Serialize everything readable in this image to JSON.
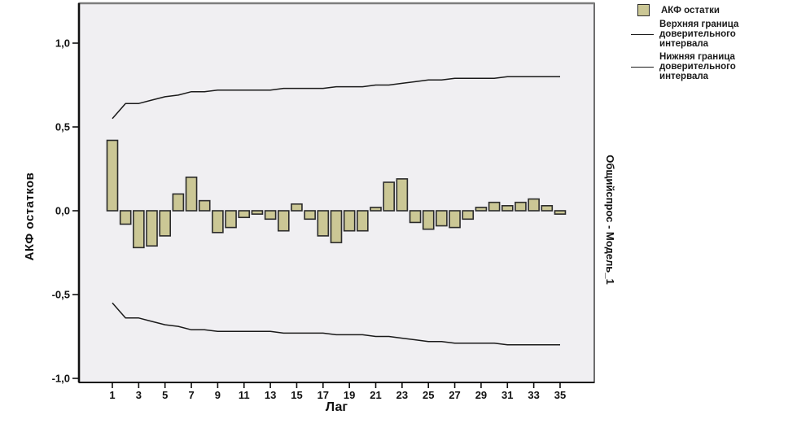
{
  "figure": {
    "background": "#FFFFFF",
    "plot_background": "#F0EFF2",
    "frame_color": "#4A4A4A",
    "axis_color": "#111111",
    "tick_text_color": "#111111"
  },
  "titles": {
    "y_axis": "АКФ остатков",
    "x_axis": "Лаг",
    "right": "Общийспрос - Модель_1"
  },
  "legend": {
    "items": [
      {
        "swatch": "bar-swatch",
        "label": "АКФ остатки"
      },
      {
        "swatch": "line-swatch",
        "label": "Верхняя граница доверительного интервала"
      },
      {
        "swatch": "line-swatch",
        "label": "Нижняя граница доверительного интервала"
      }
    ]
  },
  "chart_data": {
    "type": "bar",
    "title": "",
    "xlabel": "Лаг",
    "ylabel": "АКФ остатков",
    "right_label": "Общийспрос - Модель_1",
    "grid": false,
    "legend_position": "top-right",
    "ylim": [
      -1.03,
      1.24
    ],
    "xlim": [
      -1.5,
      37.6
    ],
    "x": [
      1,
      2,
      3,
      4,
      5,
      6,
      7,
      8,
      9,
      10,
      11,
      12,
      13,
      14,
      15,
      16,
      17,
      18,
      19,
      20,
      21,
      22,
      23,
      24,
      25,
      26,
      27,
      28,
      29,
      30,
      31,
      32,
      33,
      34,
      35
    ],
    "series": [
      {
        "name": "АКФ остатки",
        "type": "bar",
        "color": "#CBC795",
        "border_color": "#2B2B2B",
        "values": [
          0.42,
          -0.08,
          -0.22,
          -0.21,
          -0.15,
          0.1,
          0.2,
          0.06,
          -0.13,
          -0.1,
          -0.04,
          -0.02,
          -0.05,
          -0.12,
          0.04,
          -0.05,
          -0.15,
          -0.19,
          -0.12,
          -0.12,
          0.02,
          0.17,
          0.19,
          -0.07,
          -0.11,
          -0.09,
          -0.1,
          -0.05,
          0.02,
          0.05,
          0.03,
          0.05,
          0.07,
          0.03,
          -0.02
        ]
      },
      {
        "name": "Верхняя граница доверительного интервала",
        "type": "line",
        "color": "#1A1A1A",
        "values": [
          0.55,
          0.64,
          0.64,
          0.66,
          0.68,
          0.69,
          0.71,
          0.71,
          0.72,
          0.72,
          0.72,
          0.72,
          0.72,
          0.73,
          0.73,
          0.73,
          0.73,
          0.74,
          0.74,
          0.74,
          0.75,
          0.75,
          0.76,
          0.77,
          0.78,
          0.78,
          0.79,
          0.79,
          0.79,
          0.79,
          0.8,
          0.8,
          0.8,
          0.8,
          0.8
        ]
      },
      {
        "name": "Нижняя граница доверительного интервала",
        "type": "line",
        "color": "#1A1A1A",
        "values": [
          -0.55,
          -0.64,
          -0.64,
          -0.66,
          -0.68,
          -0.69,
          -0.71,
          -0.71,
          -0.72,
          -0.72,
          -0.72,
          -0.72,
          -0.72,
          -0.73,
          -0.73,
          -0.73,
          -0.73,
          -0.74,
          -0.74,
          -0.74,
          -0.75,
          -0.75,
          -0.76,
          -0.77,
          -0.78,
          -0.78,
          -0.79,
          -0.79,
          -0.79,
          -0.79,
          -0.8,
          -0.8,
          -0.8,
          -0.8,
          -0.8
        ]
      }
    ],
    "yticks": [
      {
        "value": 1.0,
        "label": "1,0"
      },
      {
        "value": 0.5,
        "label": "0,5"
      },
      {
        "value": 0.0,
        "label": "0,0"
      },
      {
        "value": -0.5,
        "label": "-0,5"
      },
      {
        "value": -1.0,
        "label": "-1,0"
      }
    ],
    "xticks": [
      {
        "value": 1,
        "label": "1"
      },
      {
        "value": 3,
        "label": "3"
      },
      {
        "value": 5,
        "label": "5"
      },
      {
        "value": 7,
        "label": "7"
      },
      {
        "value": 9,
        "label": "9"
      },
      {
        "value": 11,
        "label": "11"
      },
      {
        "value": 13,
        "label": "13"
      },
      {
        "value": 15,
        "label": "15"
      },
      {
        "value": 17,
        "label": "17"
      },
      {
        "value": 19,
        "label": "19"
      },
      {
        "value": 21,
        "label": "21"
      },
      {
        "value": 23,
        "label": "23"
      },
      {
        "value": 25,
        "label": "25"
      },
      {
        "value": 27,
        "label": "27"
      },
      {
        "value": 29,
        "label": "29"
      },
      {
        "value": 31,
        "label": "31"
      },
      {
        "value": 33,
        "label": "33"
      },
      {
        "value": 35,
        "label": "35"
      }
    ]
  }
}
